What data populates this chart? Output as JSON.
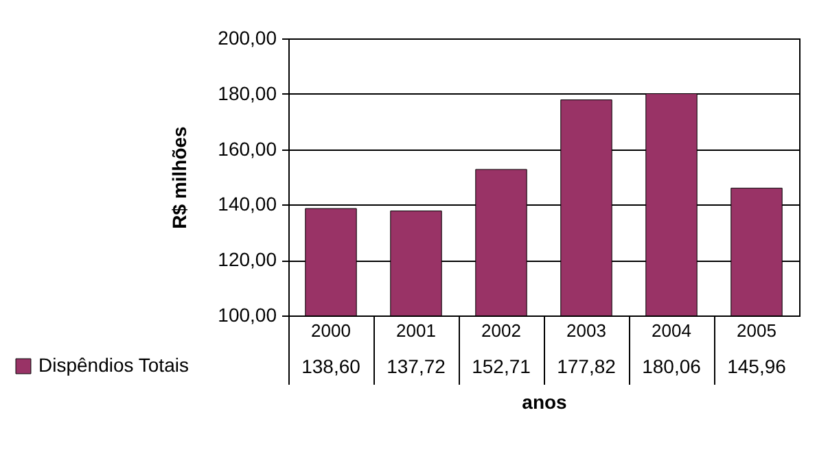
{
  "chart_data": {
    "type": "bar",
    "xlabel": "anos",
    "ylabel": "R$ milhões",
    "categories": [
      "2000",
      "2001",
      "2002",
      "2003",
      "2004",
      "2005"
    ],
    "series": [
      {
        "name": "Dispêndios Totais",
        "color": "#993366",
        "values": [
          138.6,
          137.72,
          152.71,
          177.82,
          180.06,
          145.96
        ]
      }
    ],
    "value_labels": [
      "138,60",
      "137,72",
      "152,71",
      "177,82",
      "180,06",
      "145,96"
    ],
    "ylim": [
      100,
      200
    ],
    "yticks": [
      {
        "value": 100,
        "label": "100,00"
      },
      {
        "value": 120,
        "label": "120,00"
      },
      {
        "value": 140,
        "label": "140,00"
      },
      {
        "value": 160,
        "label": "160,00"
      },
      {
        "value": 180,
        "label": "180,00"
      },
      {
        "value": 200,
        "label": "200,00"
      }
    ],
    "grid": "y",
    "legend": "bottom left"
  }
}
